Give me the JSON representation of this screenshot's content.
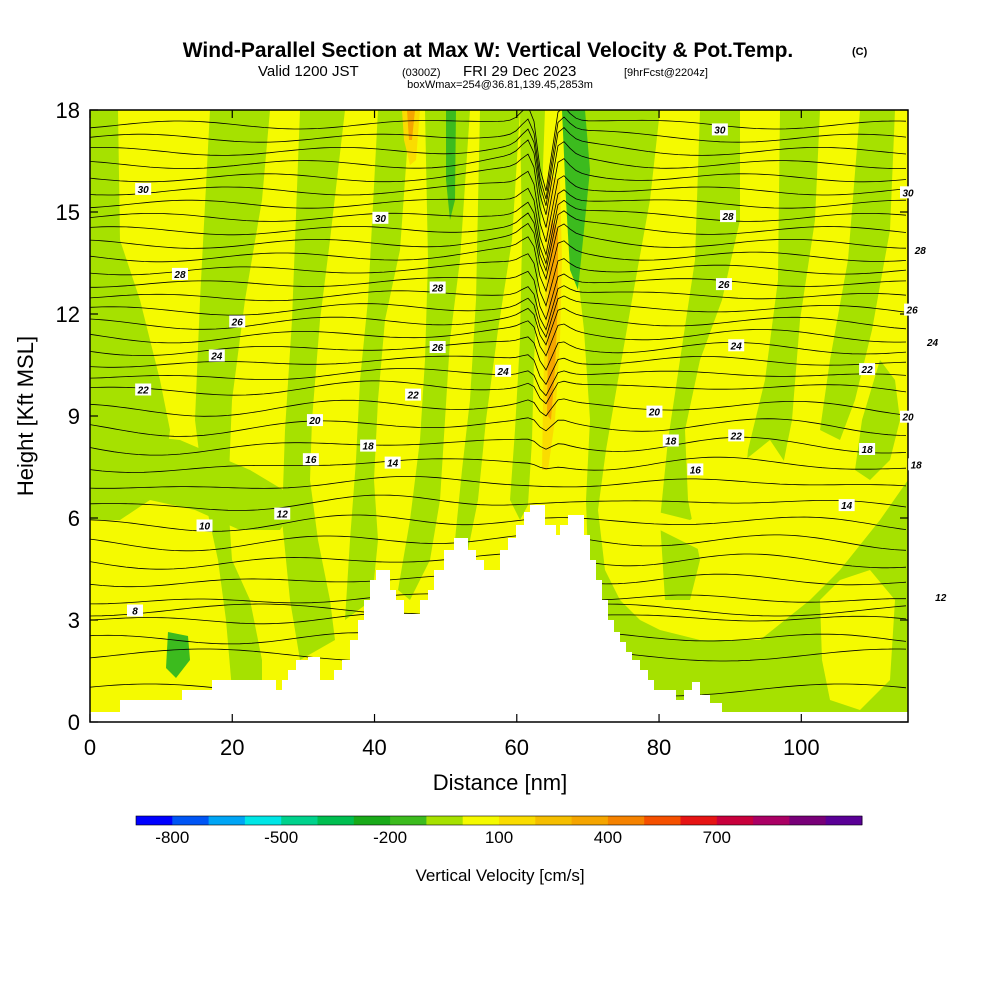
{
  "title": {
    "main": "Wind-Parallel Section at Max W: Vertical Velocity & Pot.Temp.",
    "copyright": "(C)",
    "valid_prefix": "Valid 1200 JST",
    "valid_utc": "(0300Z)",
    "valid_date": "FRI 29 Dec 2023",
    "forecast": "[9hrFcst@2204z]",
    "box": "boxWmax=254@36.81,139.45,2853m"
  },
  "colors": {
    "yellow": "#f5fa00",
    "lightgreen": "#a6e100",
    "green": "#3cbb1e",
    "gold": "#fadc00",
    "orange": "#f5a500"
  },
  "chart_data": {
    "type": "heatmap",
    "description_fields": "filled contours of vertical velocity with potential temperature isolines",
    "xlabel": "Distance [nm]",
    "ylabel": "Height [Kft MSL]",
    "xlim": [
      0,
      115
    ],
    "ylim": [
      0,
      18
    ],
    "x_ticks": [
      0,
      20,
      40,
      60,
      80,
      100
    ],
    "y_ticks": [
      0,
      3,
      6,
      9,
      12,
      15,
      18
    ],
    "colorbar": {
      "label": "Vertical Velocity [cm/s]",
      "tick_labels": [
        "-800",
        "-500",
        "-200",
        "100",
        "400",
        "700"
      ],
      "tick_values": [
        -800,
        -500,
        -200,
        100,
        400,
        700
      ],
      "colors": [
        "#0000ff",
        "#0055f5",
        "#00a5f5",
        "#00e6e6",
        "#00d28c",
        "#00be50",
        "#19aa19",
        "#3cbb1e",
        "#a6e100",
        "#f5fa00",
        "#fadc00",
        "#f5be00",
        "#f5a500",
        "#f58200",
        "#f55000",
        "#e61414",
        "#c8003c",
        "#aa0064",
        "#780078",
        "#5a0096"
      ]
    },
    "theta_labels": [
      {
        "text": "30",
        "x": 1.3,
        "y": 15.65
      },
      {
        "text": "28",
        "x": 2.2,
        "y": 13.15
      },
      {
        "text": "26",
        "x": 3.6,
        "y": 11.75
      },
      {
        "text": "24",
        "x": 3.1,
        "y": 10.75
      },
      {
        "text": "22",
        "x": 1.3,
        "y": 9.75
      },
      {
        "text": "30",
        "x": 7.1,
        "y": 14.8
      },
      {
        "text": "28",
        "x": 8.5,
        "y": 12.75
      },
      {
        "text": "26",
        "x": 8.5,
        "y": 11.0
      },
      {
        "text": "24",
        "x": 10.1,
        "y": 10.3
      },
      {
        "text": "22",
        "x": 7.9,
        "y": 9.6
      },
      {
        "text": "20",
        "x": 5.5,
        "y": 8.85
      },
      {
        "text": "18",
        "x": 6.8,
        "y": 8.1
      },
      {
        "text": "16",
        "x": 5.4,
        "y": 7.7
      },
      {
        "text": "14",
        "x": 7.4,
        "y": 7.6
      },
      {
        "text": "12",
        "x": 4.7,
        "y": 6.1
      },
      {
        "text": "10",
        "x": 2.8,
        "y": 5.75
      },
      {
        "text": "8",
        "x": 1.1,
        "y": 3.25
      },
      {
        "text": "20",
        "x": 13.8,
        "y": 9.1
      },
      {
        "text": "18",
        "x": 14.2,
        "y": 8.25
      },
      {
        "text": "16",
        "x": 14.8,
        "y": 7.4
      },
      {
        "text": "30",
        "x": 15.4,
        "y": 17.4
      },
      {
        "text": "28",
        "x": 15.6,
        "y": 14.85
      },
      {
        "text": "26",
        "x": 15.5,
        "y": 12.85
      },
      {
        "text": "24",
        "x": 15.8,
        "y": 11.05
      },
      {
        "text": "22",
        "x": 15.8,
        "y": 8.4
      },
      {
        "text": "30",
        "x": 20.0,
        "y": 15.55
      },
      {
        "text": "28",
        "x": 20.3,
        "y": 13.85
      },
      {
        "text": "26",
        "x": 20.1,
        "y": 12.1
      },
      {
        "text": "24",
        "x": 20.6,
        "y": 11.15
      },
      {
        "text": "22",
        "x": 19.0,
        "y": 10.35
      },
      {
        "text": "20",
        "x": 20.0,
        "y": 8.95
      },
      {
        "text": "18",
        "x": 19.0,
        "y": 8.0
      },
      {
        "text": "18",
        "x": 20.2,
        "y": 7.55
      },
      {
        "text": "14",
        "x": 18.5,
        "y": 6.35
      },
      {
        "text": "12",
        "x": 20.8,
        "y": 3.65
      }
    ]
  }
}
